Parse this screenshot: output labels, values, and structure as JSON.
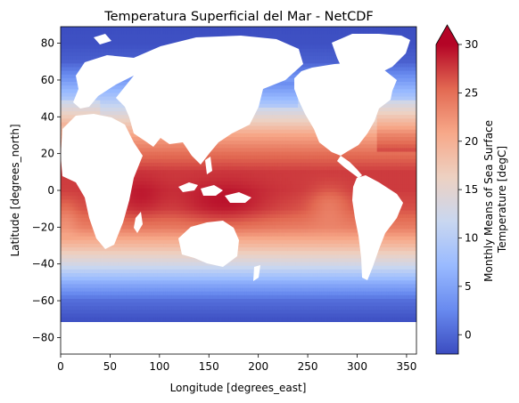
{
  "chart_data": {
    "type": "heatmap",
    "title": "Temperatura Superficial del Mar - NetCDF",
    "xlabel": "Longitude [degrees_east]",
    "ylabel": "Latitude [degrees_north]",
    "xlim": [
      0,
      360
    ],
    "ylim": [
      -89,
      89
    ],
    "xticks": [
      "0",
      "50",
      "100",
      "150",
      "200",
      "250",
      "300",
      "350"
    ],
    "xtick_values": [
      0,
      50,
      100,
      150,
      200,
      250,
      300,
      350
    ],
    "yticks": [
      "80",
      "60",
      "40",
      "20",
      "0",
      "−20",
      "−40",
      "−60",
      "−80"
    ],
    "ytick_values": [
      80,
      60,
      40,
      20,
      0,
      -20,
      -40,
      -60,
      -80
    ],
    "grid": false,
    "colormap": "coolwarm",
    "colorbar": {
      "label_line1": "Monthly Means of Sea Surface",
      "label_line2": "Temperature [degC]",
      "range": [
        -2,
        30
      ],
      "ticks": [
        "0",
        "5",
        "10",
        "15",
        "20",
        "25",
        "30"
      ],
      "tick_values": [
        0,
        5,
        10,
        15,
        20,
        25,
        30
      ],
      "extend": "max",
      "colors": [
        "#3b4cc0",
        "#688aef",
        "#99baff",
        "#c9d7f0",
        "#edd1c2",
        "#f7a889",
        "#e26952",
        "#b40426"
      ]
    },
    "land_color": "#ffffff",
    "latitude_profile_degC": {
      "lat": [
        90,
        80,
        70,
        60,
        50,
        40,
        30,
        20,
        10,
        0,
        -10,
        -20,
        -30,
        -40,
        -50,
        -60,
        -70,
        -80
      ],
      "sst": [
        -1.8,
        -1.7,
        -0.5,
        4,
        9,
        15,
        21,
        25,
        27.5,
        27.5,
        26.5,
        24,
        19,
        13,
        6,
        0.5,
        -1.5,
        -1.8
      ]
    }
  }
}
